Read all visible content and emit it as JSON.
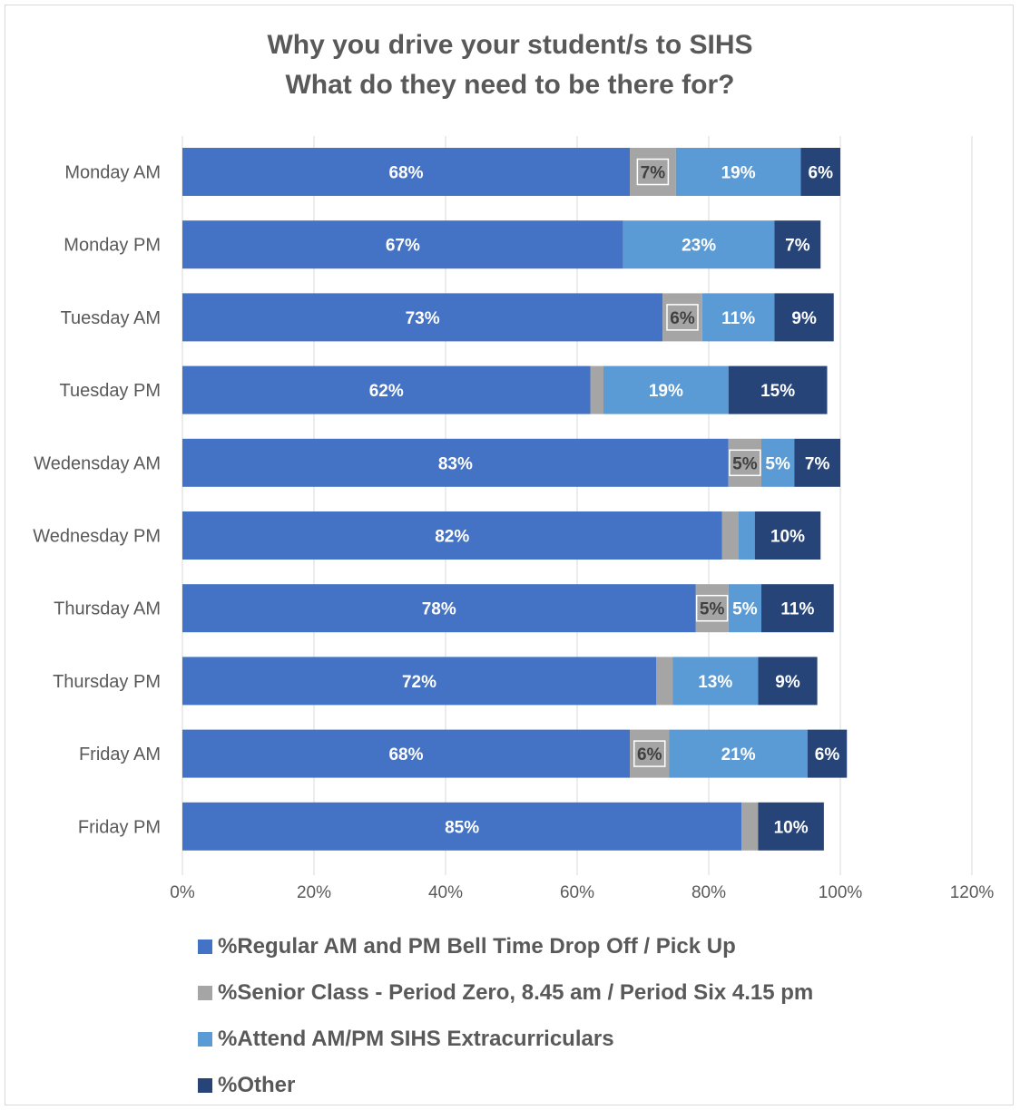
{
  "chart_data": {
    "type": "bar",
    "orientation": "horizontal",
    "stacked": true,
    "title": "Why you drive your student/s to SIHS",
    "subtitle": "What do they need to be there for?",
    "categories": [
      "Monday AM",
      "Monday PM",
      "Tuesday AM",
      "Tuesday PM",
      "Wedensday AM",
      "Wednesday PM",
      "Thursday AM",
      "Thursday PM",
      "Friday AM",
      "Friday PM"
    ],
    "series": [
      {
        "name": "%Regular AM and PM Bell Time Drop Off / Pick Up",
        "color": "#4472c4",
        "values": [
          68,
          67,
          73,
          62,
          83,
          82,
          78,
          72,
          68,
          85
        ],
        "labels": [
          "68%",
          "67%",
          "73%",
          "62%",
          "83%",
          "82%",
          "78%",
          "72%",
          "68%",
          "85%"
        ]
      },
      {
        "name": "%Senior Class - Period Zero, 8.45 am / Period Six 4.15 pm",
        "color": "#a5a5a5",
        "values": [
          7,
          0,
          6,
          2,
          5,
          2.5,
          5,
          2.5,
          6,
          2.5
        ],
        "labels": [
          "7%",
          "",
          "6%",
          "",
          "5%",
          "",
          "5%",
          "",
          "6%",
          ""
        ]
      },
      {
        "name": "%Attend AM/PM SIHS Extracurriculars",
        "color": "#5b9bd5",
        "values": [
          19,
          23,
          11,
          19,
          5,
          2.5,
          5,
          13,
          21,
          0
        ],
        "labels": [
          "19%",
          "23%",
          "11%",
          "19%",
          "5%",
          "",
          "5%",
          "13%",
          "21%",
          ""
        ]
      },
      {
        "name": "%Other",
        "color": "#264478",
        "values": [
          6,
          7,
          9,
          15,
          7,
          10,
          11,
          9,
          6,
          10
        ],
        "labels": [
          "6%",
          "7%",
          "9%",
          "15%",
          "7%",
          "10%",
          "11%",
          "9%",
          "6%",
          "10%"
        ]
      }
    ],
    "xlim": [
      0,
      120
    ],
    "x_ticks": [
      "0%",
      "20%",
      "40%",
      "60%",
      "80%",
      "100%",
      "120%"
    ],
    "grid": true,
    "legend_position": "bottom"
  }
}
